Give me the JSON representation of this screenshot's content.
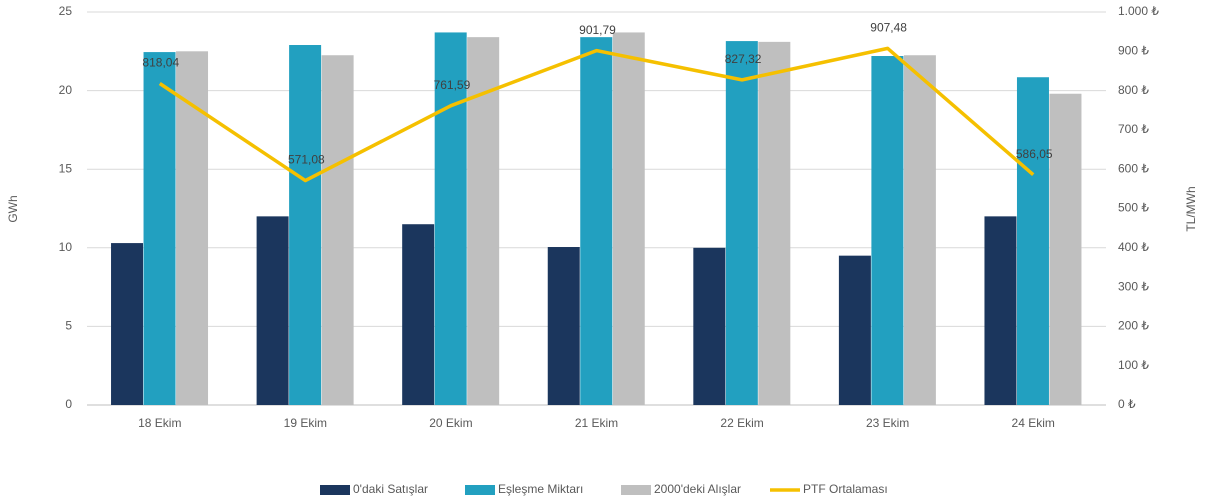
{
  "chart_data": {
    "type": "bar",
    "categories": [
      "18 Ekim",
      "19 Ekim",
      "20 Ekim",
      "21 Ekim",
      "22 Ekim",
      "23 Ekim",
      "24 Ekim"
    ],
    "series": [
      {
        "name": "0'daki Satışlar",
        "color": "#1b365d",
        "values": [
          10.3,
          12.0,
          11.5,
          10.05,
          10.0,
          9.5,
          12.0
        ]
      },
      {
        "name": "Eşleşme Miktarı",
        "color": "#22a0c0",
        "values": [
          22.45,
          22.9,
          23.7,
          23.4,
          23.15,
          22.2,
          20.85
        ]
      },
      {
        "name": "2000'deki Alışlar",
        "color": "#bfbfbf",
        "values": [
          22.5,
          22.25,
          23.4,
          23.7,
          23.1,
          22.25,
          19.8
        ]
      },
      {
        "name": "PTF Ortalaması",
        "color": "#f5c000",
        "type": "line",
        "axis": "y2",
        "values": [
          818.04,
          571.08,
          761.59,
          901.79,
          827.32,
          907.48,
          586.05
        ],
        "value_labels": [
          "818,04",
          "571,08",
          "761,59",
          "901,79",
          "827,32",
          "907,48",
          "586,05"
        ]
      }
    ],
    "ylabel": "GWh",
    "y2label": "TL/MWh",
    "ylim": [
      0,
      25
    ],
    "yticks": [
      0,
      5,
      10,
      15,
      20,
      25
    ],
    "y2lim": [
      0,
      1000
    ],
    "y2ticks": [
      {
        "value": 0,
        "label": "0 ₺"
      },
      {
        "value": 100,
        "label": "100 ₺"
      },
      {
        "value": 200,
        "label": "200 ₺"
      },
      {
        "value": 300,
        "label": "300 ₺"
      },
      {
        "value": 400,
        "label": "400 ₺"
      },
      {
        "value": 500,
        "label": "500 ₺"
      },
      {
        "value": 600,
        "label": "600 ₺"
      },
      {
        "value": 700,
        "label": "700 ₺"
      },
      {
        "value": 800,
        "label": "800 ₺"
      },
      {
        "value": 900,
        "label": "900 ₺"
      },
      {
        "value": 1000,
        "label": "1.000 ₺"
      }
    ],
    "grid": true,
    "legend": "bottom"
  }
}
